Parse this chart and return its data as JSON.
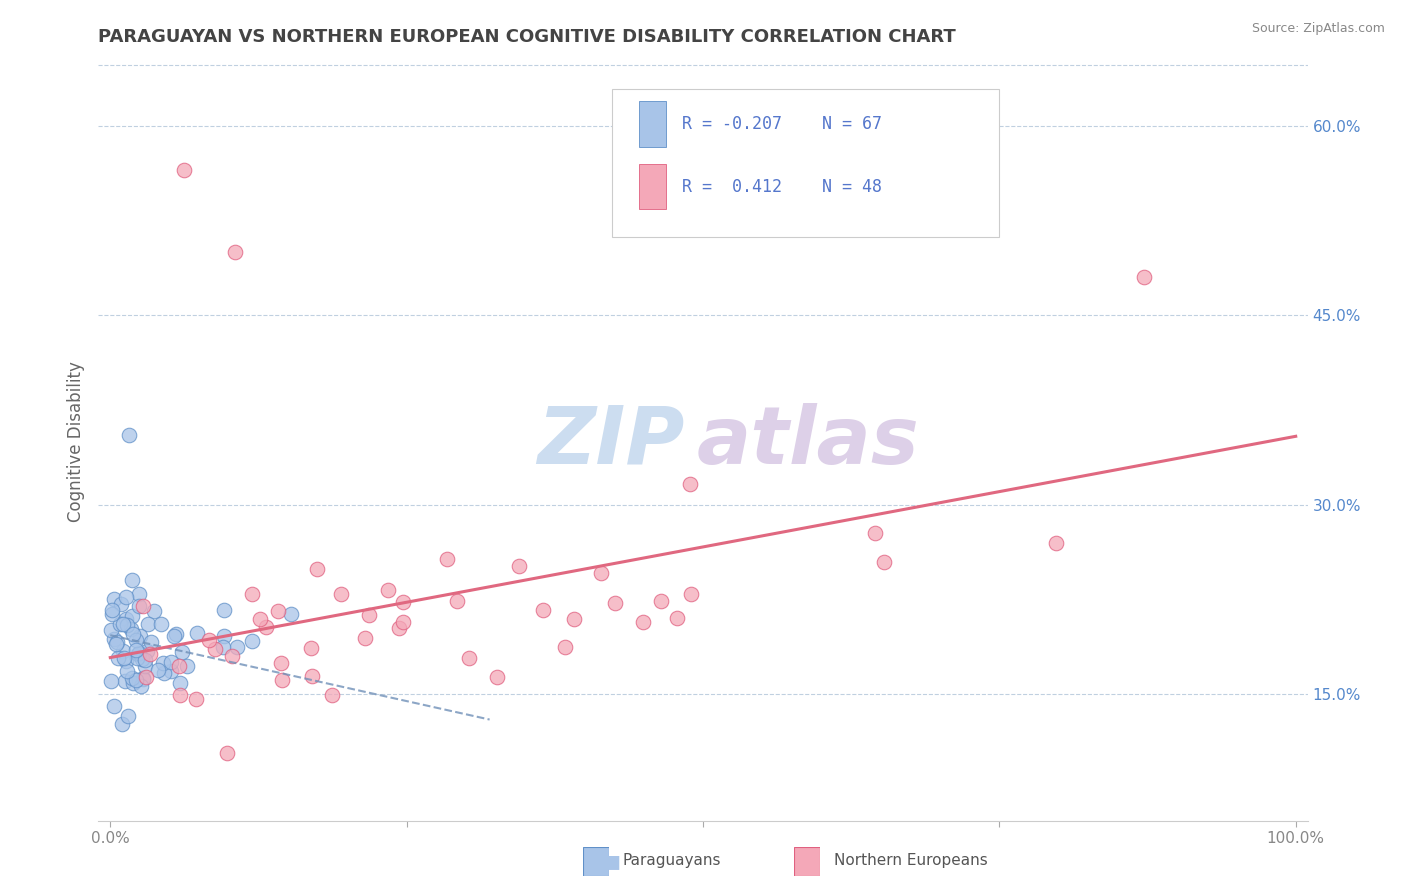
{
  "title": "PARAGUAYAN VS NORTHERN EUROPEAN COGNITIVE DISABILITY CORRELATION CHART",
  "source": "Source: ZipAtlas.com",
  "ylabel": "Cognitive Disability",
  "xlabel": "",
  "watermark_zip": "ZIP",
  "watermark_atlas": "atlas",
  "legend_labels": [
    "Paraguayans",
    "Northern Europeans"
  ],
  "r_paraguayan": -0.207,
  "n_paraguayan": 67,
  "r_northern": 0.412,
  "n_northern": 48,
  "blue_color": "#a8c4e8",
  "pink_color": "#f4a8b8",
  "blue_edge_color": "#6090c8",
  "pink_edge_color": "#e06080",
  "blue_line_color": "#7090b8",
  "pink_line_color": "#e06880",
  "xmin": 0.0,
  "xmax": 1.0,
  "ymin": 0.05,
  "ymax": 0.65,
  "right_yticks": [
    0.15,
    0.3,
    0.45,
    0.6
  ],
  "right_ytick_labels": [
    "15.0%",
    "30.0%",
    "45.0%",
    "60.0%"
  ],
  "bg_color": "#ffffff",
  "grid_color": "#c0d0e0",
  "title_color": "#444444",
  "source_color": "#888888",
  "axis_label_color": "#666666",
  "tick_color": "#888888",
  "right_tick_color": "#5588cc",
  "watermark_color_zip": "#ccddf0",
  "watermark_color_atlas": "#ddd0e8",
  "legend_text_color": "#5577cc",
  "legend_border_color": "#cccccc",
  "bottom_legend_color": "#555555"
}
